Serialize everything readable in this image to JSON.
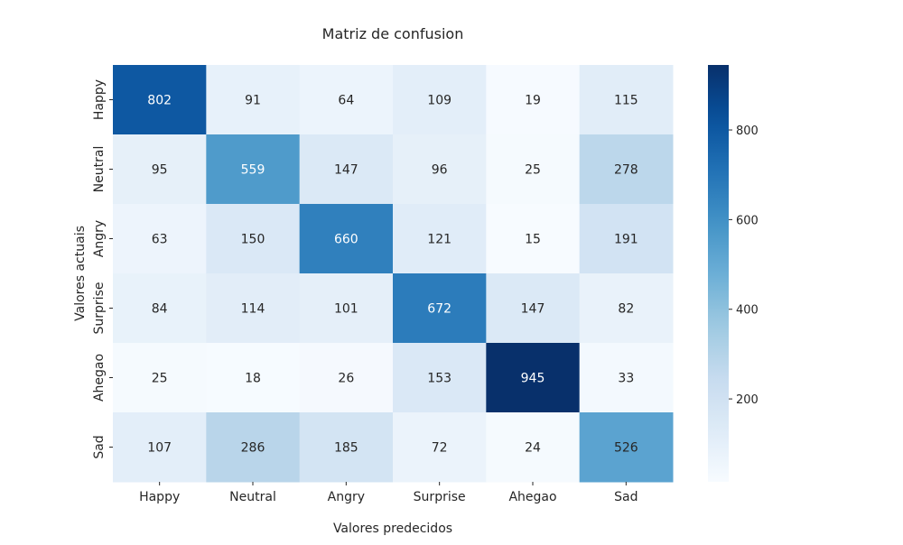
{
  "chart_data": {
    "type": "heatmap",
    "title": "Matriz de confusion",
    "xlabel": "Valores predecidos",
    "ylabel": "Valores actuais",
    "x_categories": [
      "Happy",
      "Neutral",
      "Angry",
      "Surprise",
      "Ahegao",
      "Sad"
    ],
    "y_categories": [
      "Happy",
      "Neutral",
      "Angry",
      "Surprise",
      "Ahegao",
      "Sad"
    ],
    "values": [
      [
        802,
        91,
        64,
        109,
        19,
        115
      ],
      [
        95,
        559,
        147,
        96,
        25,
        278
      ],
      [
        63,
        150,
        660,
        121,
        15,
        191
      ],
      [
        84,
        114,
        101,
        672,
        147,
        82
      ],
      [
        25,
        18,
        26,
        153,
        945,
        33
      ],
      [
        107,
        286,
        185,
        72,
        24,
        526
      ]
    ],
    "colormap": "Blues",
    "vmin": 15,
    "vmax": 945,
    "colorbar_ticks": [
      200,
      400,
      600,
      800
    ],
    "colors": {
      "low": "#f7fbff",
      "high": "#08306b"
    }
  }
}
